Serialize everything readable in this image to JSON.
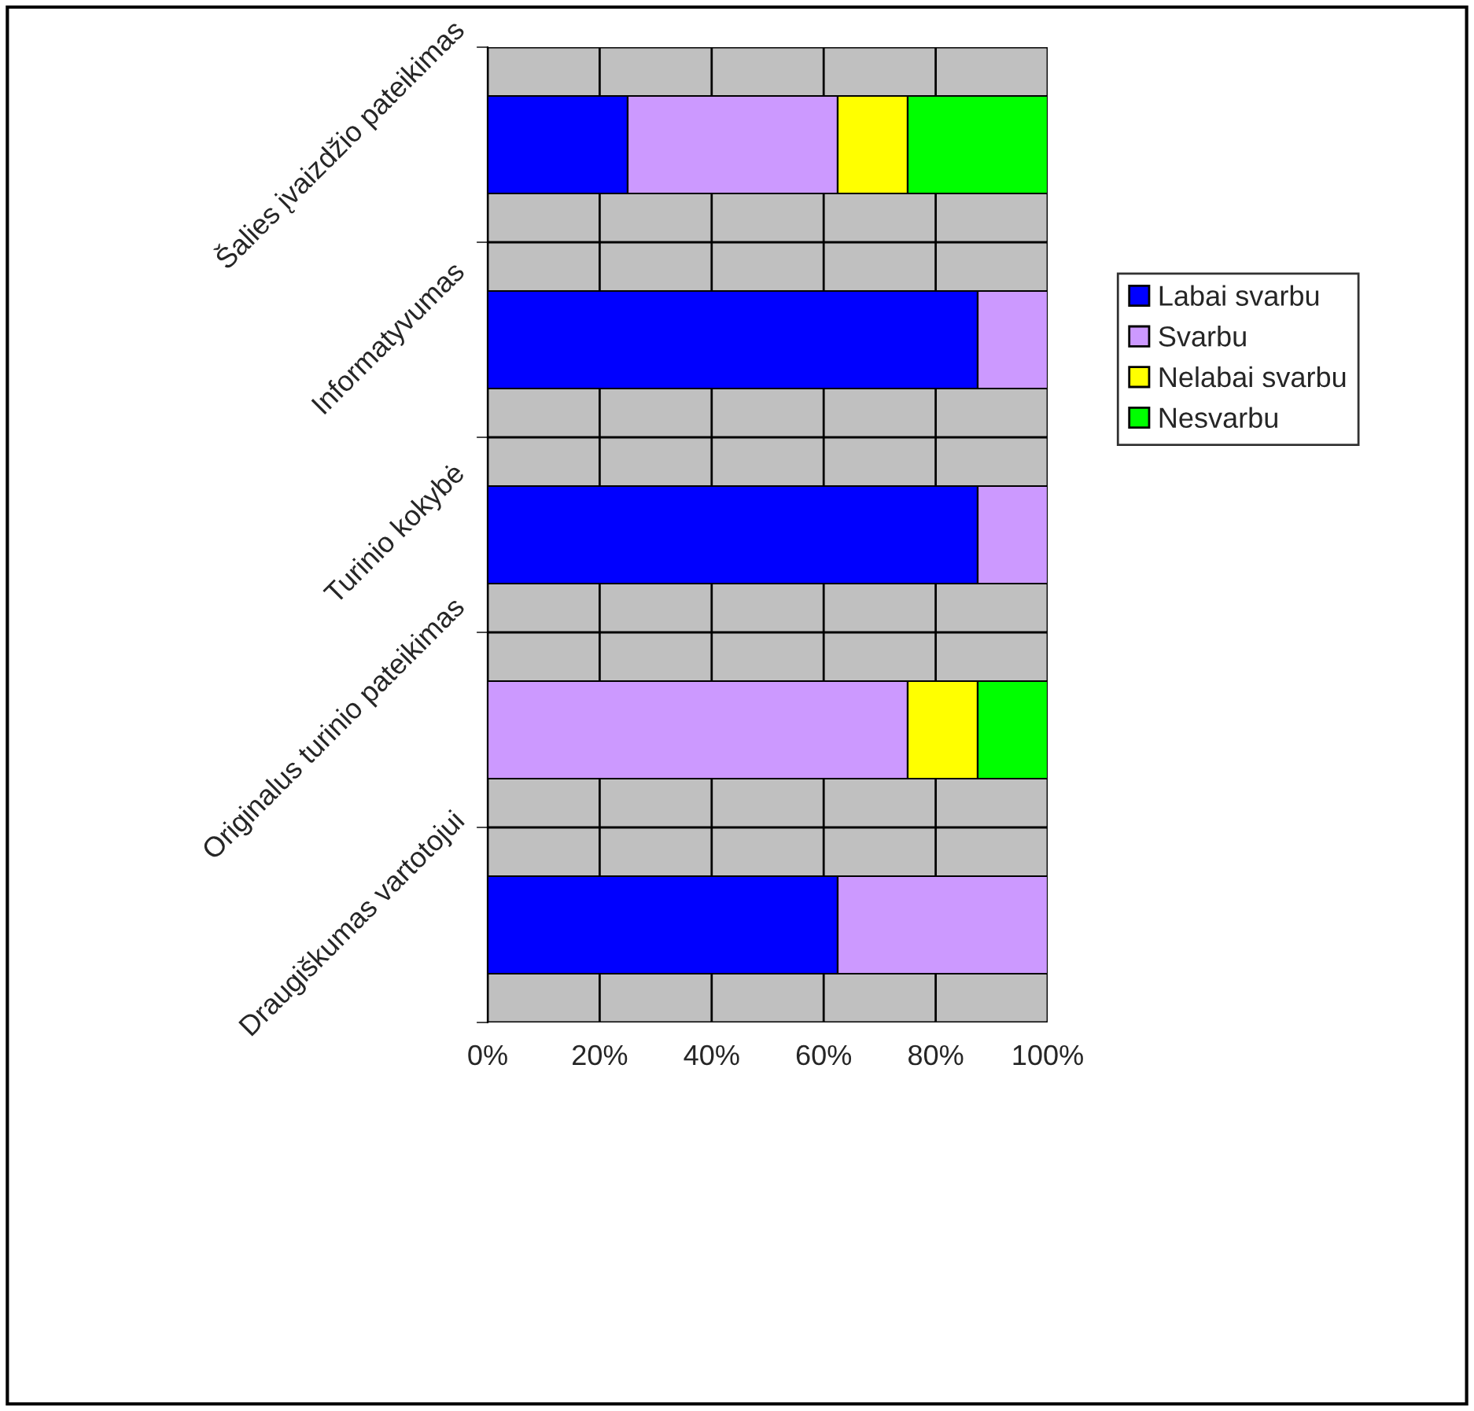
{
  "chart_data": {
    "type": "bar",
    "orientation": "horizontal",
    "stacked": true,
    "categories": [
      "Šalies įvaizdžio pateikimas",
      "Informatyvumas",
      "Turinio kokybė",
      "Originalus turinio pateikimas",
      "Draugiškumas vartotojui"
    ],
    "series": [
      {
        "name": "Labai svarbu",
        "color": "#0000ff",
        "values": [
          25,
          87.5,
          87.5,
          null,
          62.5
        ]
      },
      {
        "name": "Svarbu",
        "color": "#cc99ff",
        "values": [
          37.5,
          12.5,
          12.5,
          75,
          37.5
        ]
      },
      {
        "name": "Nelabai svarbu",
        "color": "#ffff00",
        "values": [
          12.5,
          null,
          null,
          12.5,
          null
        ]
      },
      {
        "name": "Nesvarbu",
        "color": "#00ff00",
        "values": [
          25,
          null,
          null,
          12.5,
          null
        ]
      }
    ],
    "xlim": [
      0,
      100
    ],
    "xticks": [
      {
        "value": 0,
        "label": "0%"
      },
      {
        "value": 20,
        "label": "20%"
      },
      {
        "value": 40,
        "label": "40%"
      },
      {
        "value": 60,
        "label": "60%"
      },
      {
        "value": 80,
        "label": "80%"
      },
      {
        "value": 100,
        "label": "100%"
      }
    ],
    "grid": true,
    "legend": "right"
  }
}
